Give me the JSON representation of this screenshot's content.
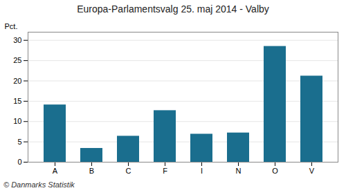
{
  "chart_data": {
    "type": "bar",
    "title": "Europa-Parlamentsvalg 25. maj 2014 - Valby",
    "categories": [
      "A",
      "B",
      "C",
      "F",
      "I",
      "N",
      "O",
      "V"
    ],
    "values": [
      14.1,
      3.4,
      6.4,
      12.7,
      6.9,
      7.2,
      28.5,
      21.2
    ],
    "color": "#1a6e8e",
    "ylabel": "Pct.",
    "ylim": [
      0,
      32
    ],
    "yticks": [
      0,
      5,
      10,
      15,
      20,
      25,
      30
    ],
    "grid": true,
    "caption": "© Danmarks Statistik"
  }
}
